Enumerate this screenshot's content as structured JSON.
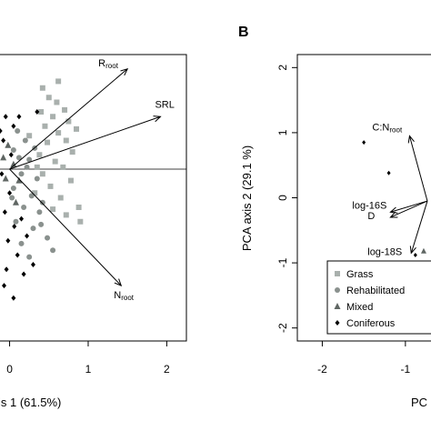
{
  "chart_data": [
    {
      "type": "scatter",
      "panel_label": "",
      "title": "",
      "xlabel": "is 1 (61.5%)",
      "ylabel": "",
      "xlim": [
        -0.18,
        2.25
      ],
      "ylim": [
        -1.8,
        1.2
      ],
      "xticks": [
        0,
        1,
        2
      ],
      "x_reference_line": 0,
      "arrows": [
        {
          "label": "R",
          "label_sub": "root",
          "x": 1.5,
          "y": 1.05
        },
        {
          "label": "SRL",
          "label_sub": "",
          "x": 1.92,
          "y": 0.55
        },
        {
          "label": "N",
          "label_sub": "root",
          "x": 1.42,
          "y": -1.22
        }
      ],
      "series": [
        {
          "group": "grass",
          "marker": "square",
          "color": "#a9b0ad",
          "points": [
            [
              0.42,
              0.85
            ],
            [
              0.5,
              0.75
            ],
            [
              0.6,
              0.7
            ],
            [
              0.7,
              0.62
            ],
            [
              0.4,
              0.6
            ],
            [
              0.55,
              0.55
            ],
            [
              0.75,
              0.5
            ],
            [
              0.85,
              0.42
            ],
            [
              0.45,
              0.45
            ],
            [
              0.62,
              0.38
            ],
            [
              0.72,
              0.3
            ],
            [
              0.48,
              0.28
            ],
            [
              0.8,
              0.18
            ],
            [
              0.38,
              0.15
            ],
            [
              0.58,
              0.08
            ],
            [
              0.68,
              0.02
            ],
            [
              0.42,
              -0.05
            ],
            [
              0.78,
              -0.12
            ],
            [
              0.52,
              -0.18
            ],
            [
              0.32,
              -0.25
            ],
            [
              0.65,
              -0.3
            ],
            [
              0.88,
              -0.4
            ],
            [
              0.9,
              -0.55
            ],
            [
              0.55,
              -0.42
            ],
            [
              0.72,
              -0.48
            ],
            [
              0.25,
              0.35
            ],
            [
              0.35,
              0.02
            ],
            [
              0.62,
              0.92
            ]
          ]
        },
        {
          "group": "rehabilitated",
          "marker": "circle",
          "color": "#8a918e",
          "points": [
            [
              0.1,
              0.4
            ],
            [
              0.2,
              0.3
            ],
            [
              0.05,
              0.2
            ],
            [
              0.25,
              0.1
            ],
            [
              0.15,
              -0.05
            ],
            [
              0.35,
              -0.1
            ],
            [
              0.05,
              -0.2
            ],
            [
              0.28,
              -0.28
            ],
            [
              0.18,
              -0.4
            ],
            [
              0.38,
              -0.45
            ],
            [
              0.08,
              -0.55
            ],
            [
              0.3,
              -0.62
            ],
            [
              0.48,
              -0.72
            ],
            [
              0.15,
              -0.78
            ],
            [
              0.25,
              -0.92
            ],
            [
              0.42,
              -0.35
            ],
            [
              0.22,
              0.02
            ],
            [
              0.12,
              0.12
            ],
            [
              0.4,
              -0.58
            ],
            [
              0.03,
              -0.3
            ],
            [
              0.32,
              0.22
            ],
            [
              0.55,
              -0.85
            ]
          ]
        },
        {
          "group": "mixed",
          "marker": "triangle",
          "color": "#5f6663",
          "points": [
            [
              -0.02,
              0.25
            ],
            [
              0.05,
              0.05
            ],
            [
              -0.05,
              -0.1
            ],
            [
              0.08,
              -0.35
            ],
            [
              0.12,
              -0.12
            ],
            [
              -0.08,
              0.12
            ]
          ]
        },
        {
          "group": "coniferous",
          "marker": "diamond",
          "color": "#000000",
          "points": [
            [
              -0.05,
              0.55
            ],
            [
              0.05,
              0.45
            ],
            [
              -0.08,
              0.3
            ],
            [
              0.02,
              0.15
            ],
            [
              -0.1,
              -0.05
            ],
            [
              0.0,
              -0.25
            ],
            [
              -0.06,
              -0.45
            ],
            [
              0.06,
              -0.6
            ],
            [
              -0.02,
              -0.75
            ],
            [
              0.1,
              -0.9
            ],
            [
              0.3,
              -1.0
            ],
            [
              0.18,
              -1.1
            ],
            [
              -0.07,
              -1.22
            ],
            [
              0.05,
              -1.35
            ],
            [
              0.22,
              -0.7
            ],
            [
              0.12,
              0.55
            ],
            [
              -0.12,
              0.4
            ],
            [
              0.35,
              0.6
            ],
            [
              0.15,
              -0.52
            ],
            [
              -0.04,
              -1.05
            ]
          ]
        }
      ]
    },
    {
      "type": "scatter",
      "panel_label": "B",
      "title": "",
      "xlabel": "PC",
      "ylabel": "PCA axis 2 (29.1 %)",
      "xlim": [
        -2.3,
        -0.55
      ],
      "ylim": [
        -2.2,
        2.2
      ],
      "xticks": [
        -2,
        -1
      ],
      "yticks": [
        2,
        1,
        0,
        -1,
        -2
      ],
      "arrows": [
        {
          "label": "C:N",
          "label_sub": "root",
          "x": -0.95,
          "y": 0.95
        },
        {
          "label": "log-16S",
          "label_sub": "",
          "x": -1.18,
          "y": -0.22
        },
        {
          "label": "D",
          "label_sub": "",
          "x": -1.18,
          "y": -0.3
        },
        {
          "label": "log-18S",
          "label_sub": "",
          "x": -0.93,
          "y": -0.85
        }
      ],
      "series": [
        {
          "group": "grass",
          "marker": "square",
          "color": "#a9b0ad",
          "points": []
        },
        {
          "group": "rehabilitated",
          "marker": "circle",
          "color": "#8a918e",
          "points": []
        },
        {
          "group": "mixed",
          "marker": "triangle",
          "color": "#5f6663",
          "points": [
            [
              -0.78,
              -0.82
            ]
          ]
        },
        {
          "group": "coniferous",
          "marker": "diamond",
          "color": "#000000",
          "points": [
            [
              -1.5,
              0.85
            ],
            [
              -1.2,
              0.38
            ],
            [
              -0.88,
              -0.88
            ]
          ]
        }
      ],
      "legend": {
        "placement": "bottom-left",
        "entries": [
          {
            "label": "Grass",
            "marker": "square",
            "color": "#a9b0ad"
          },
          {
            "label": "Rehabilitated",
            "marker": "circle",
            "color": "#8a918e"
          },
          {
            "label": "Mixed",
            "marker": "triangle",
            "color": "#5f6663"
          },
          {
            "label": "Coniferous",
            "marker": "diamond",
            "color": "#000000"
          }
        ]
      }
    }
  ]
}
